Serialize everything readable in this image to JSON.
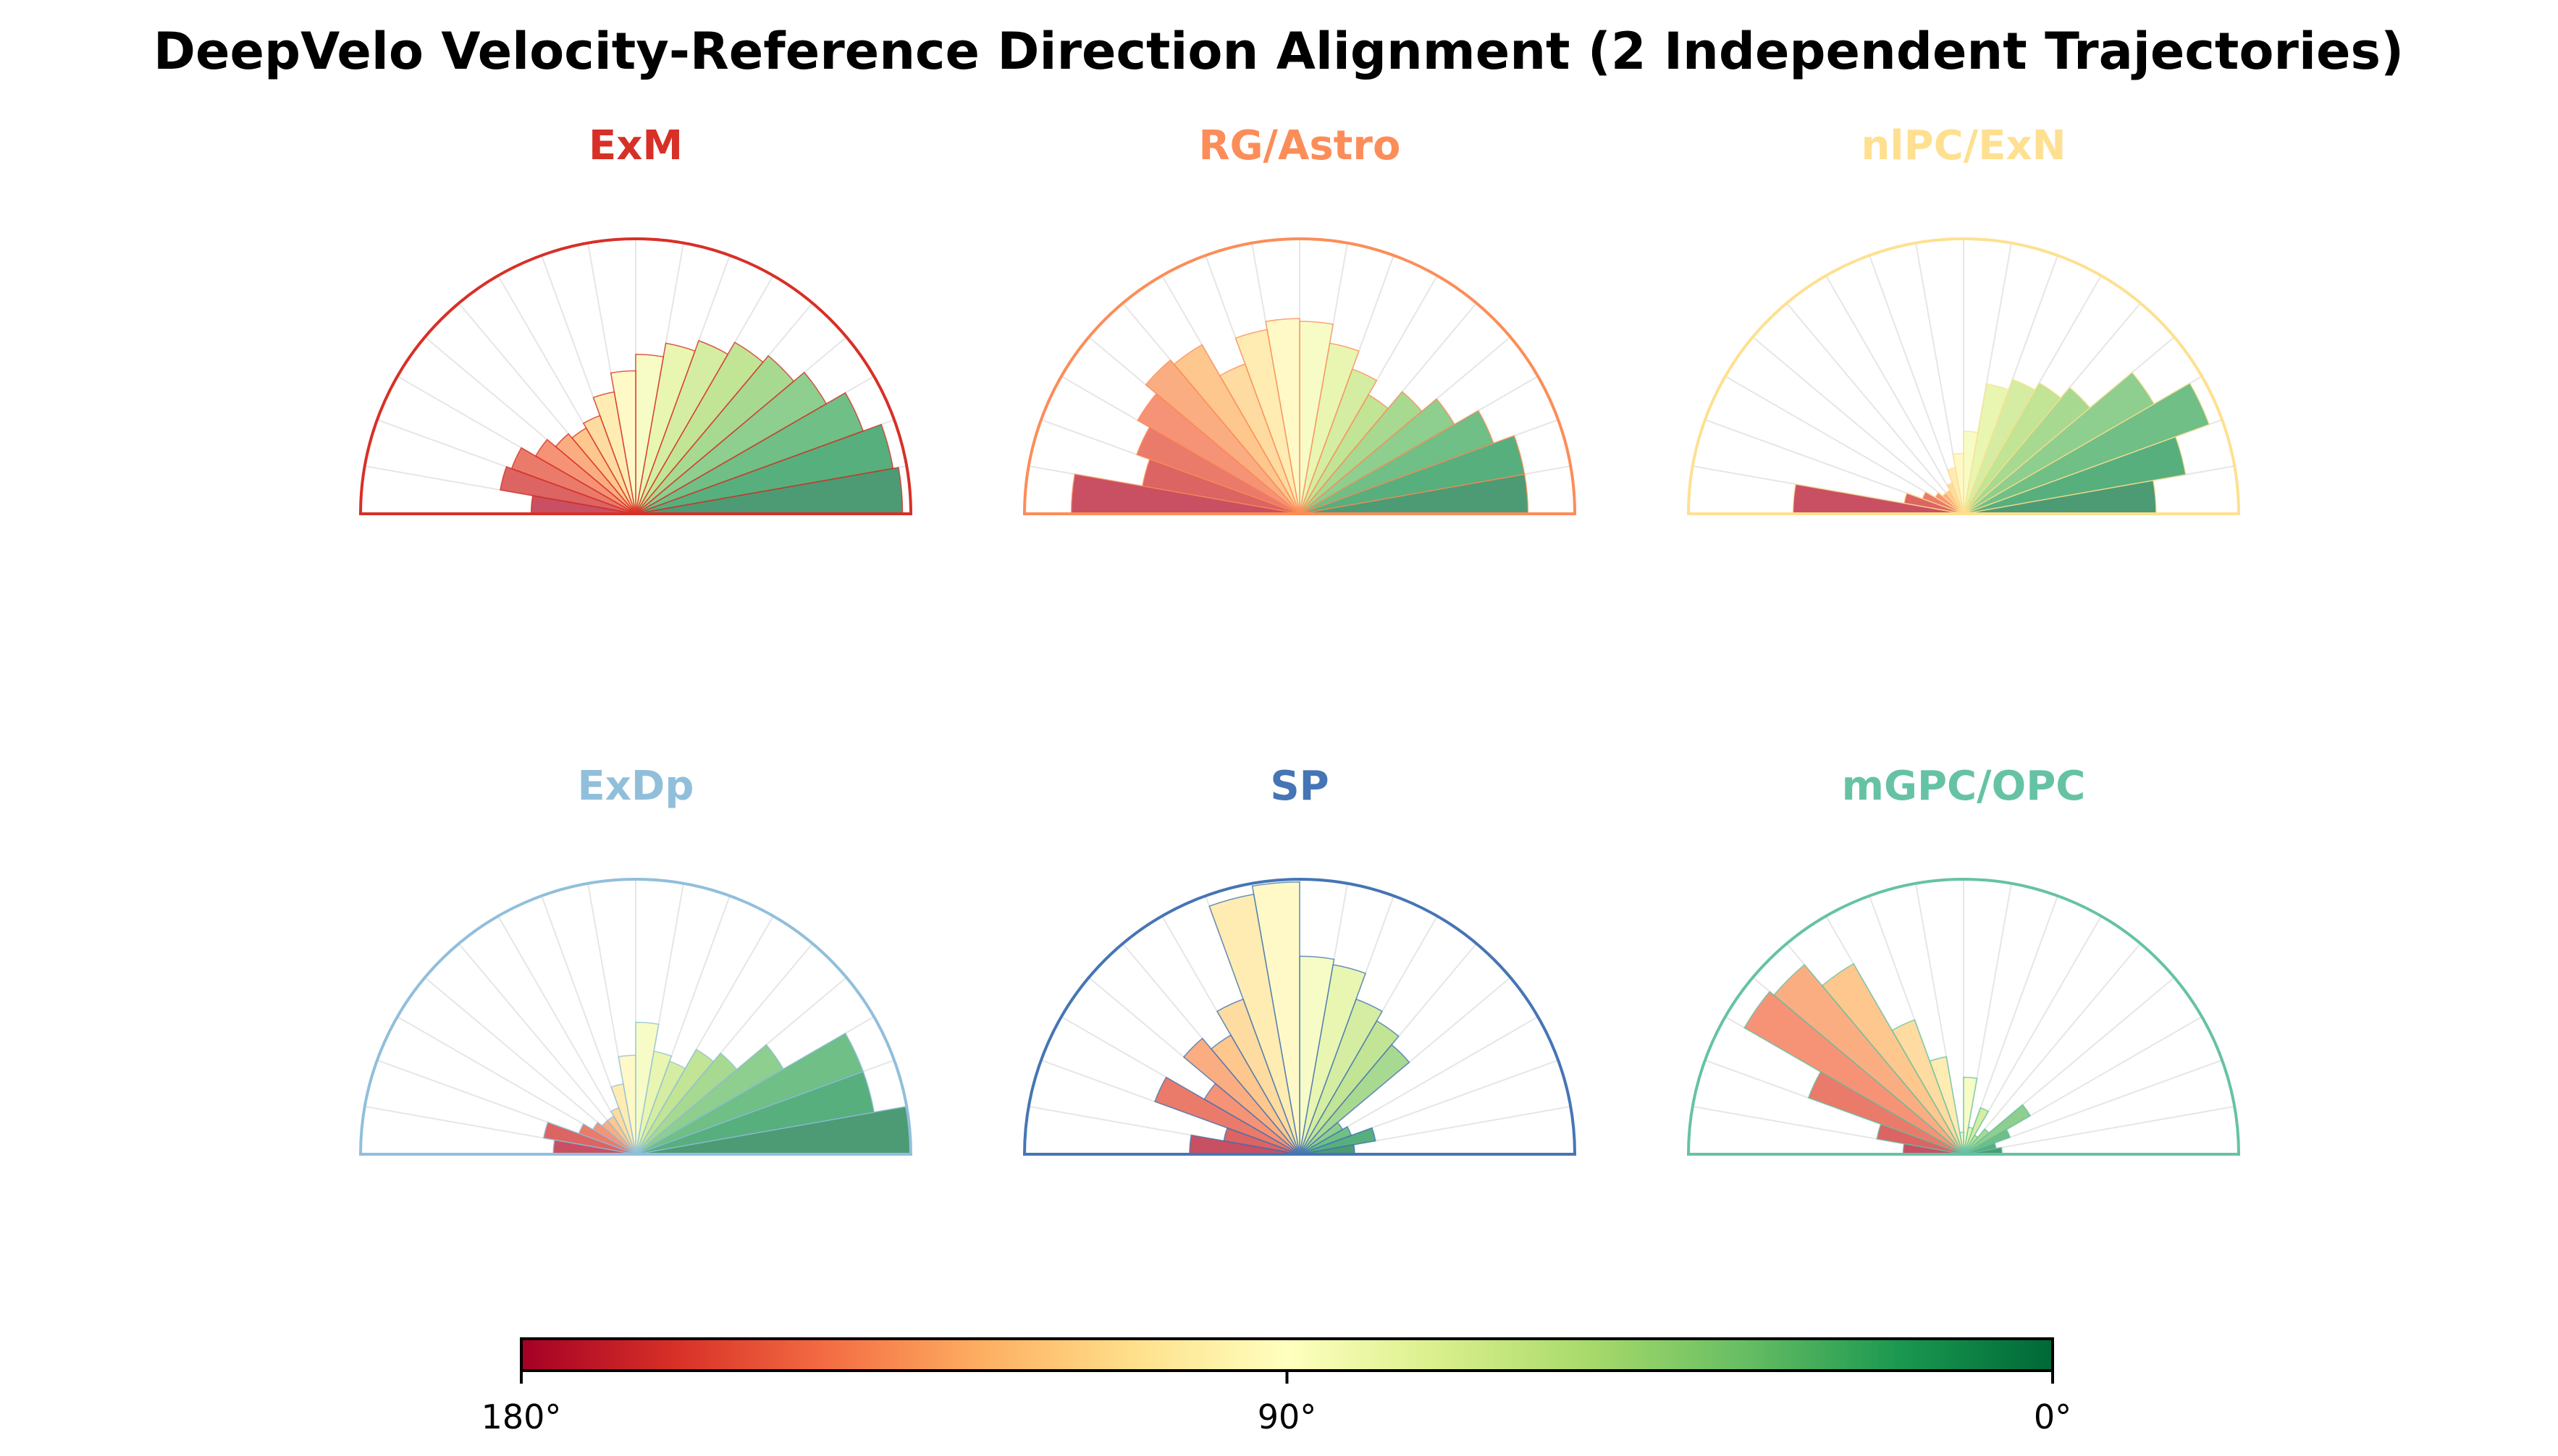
{
  "title": "DeepVelo Velocity-Reference Direction Alignment (2 Independent Trajectories)",
  "colorbar": {
    "colormap": "RdYlGn",
    "range_degrees": [
      180,
      0
    ],
    "ticks": [
      "180°",
      "90°",
      "0°"
    ]
  },
  "chart_data": [
    {
      "type": "polar_histogram",
      "title": "ExM",
      "color": "#d73027",
      "bin_width_deg": 10,
      "angles_deg": [
        5,
        15,
        25,
        35,
        45,
        55,
        65,
        75,
        85,
        95,
        105,
        115,
        125,
        135,
        145,
        155,
        165,
        175
      ],
      "values": [
        0.97,
        0.95,
        0.88,
        0.8,
        0.75,
        0.72,
        0.67,
        0.63,
        0.58,
        0.52,
        0.45,
        0.38,
        0.36,
        0.38,
        0.42,
        0.48,
        0.5,
        0.38
      ]
    },
    {
      "type": "polar_histogram",
      "title": "RG/Astro",
      "color": "#fc8d59",
      "bin_width_deg": 10,
      "angles_deg": [
        5,
        15,
        25,
        35,
        45,
        55,
        65,
        75,
        85,
        95,
        105,
        115,
        125,
        135,
        145,
        155,
        165,
        175
      ],
      "values": [
        0.83,
        0.83,
        0.75,
        0.65,
        0.58,
        0.5,
        0.56,
        0.63,
        0.7,
        0.71,
        0.68,
        0.58,
        0.71,
        0.73,
        0.68,
        0.63,
        0.58,
        0.83
      ]
    },
    {
      "type": "polar_histogram",
      "title": "nlPC/ExN",
      "color": "#fee090",
      "bin_width_deg": 10,
      "angles_deg": [
        5,
        15,
        25,
        35,
        45,
        55,
        65,
        75,
        85,
        95,
        105,
        115,
        125,
        135,
        145,
        155,
        165,
        175
      ],
      "values": [
        0.7,
        0.82,
        0.95,
        0.8,
        0.6,
        0.55,
        0.52,
        0.48,
        0.3,
        0.22,
        0.17,
        0.12,
        0.1,
        0.1,
        0.12,
        0.16,
        0.22,
        0.62
      ]
    },
    {
      "type": "polar_histogram",
      "title": "ExDp",
      "color": "#91bfdb",
      "bin_width_deg": 10,
      "angles_deg": [
        5,
        15,
        25,
        35,
        45,
        55,
        65,
        75,
        85,
        95,
        105,
        115,
        125,
        135,
        145,
        155,
        165,
        175
      ],
      "values": [
        1.0,
        0.88,
        0.88,
        0.62,
        0.48,
        0.44,
        0.36,
        0.38,
        0.48,
        0.36,
        0.26,
        0.18,
        0.16,
        0.16,
        0.18,
        0.22,
        0.34,
        0.3
      ]
    },
    {
      "type": "polar_histogram",
      "title": "SP",
      "color": "#4575b4",
      "bin_width_deg": 10,
      "angles_deg": [
        5,
        15,
        25,
        35,
        45,
        55,
        65,
        75,
        85,
        95,
        105,
        115,
        125,
        135,
        145,
        155,
        165,
        175
      ],
      "values": [
        0.2,
        0.28,
        0.2,
        0.18,
        0.52,
        0.56,
        0.6,
        0.7,
        0.72,
        0.99,
        0.96,
        0.6,
        0.5,
        0.55,
        0.4,
        0.56,
        0.28,
        0.4
      ]
    },
    {
      "type": "polar_histogram",
      "title": "mGPC/OPC",
      "color": "#66c2a5",
      "bin_width_deg": 10,
      "angles_deg": [
        5,
        15,
        25,
        35,
        45,
        55,
        65,
        75,
        85,
        95,
        105,
        115,
        125,
        135,
        145,
        155,
        165,
        175
      ],
      "values": [
        0.14,
        0.12,
        0.18,
        0.28,
        0.12,
        0.08,
        0.18,
        0.1,
        0.28,
        0.08,
        0.36,
        0.52,
        0.8,
        0.9,
        0.92,
        0.6,
        0.32,
        0.22
      ]
    }
  ]
}
